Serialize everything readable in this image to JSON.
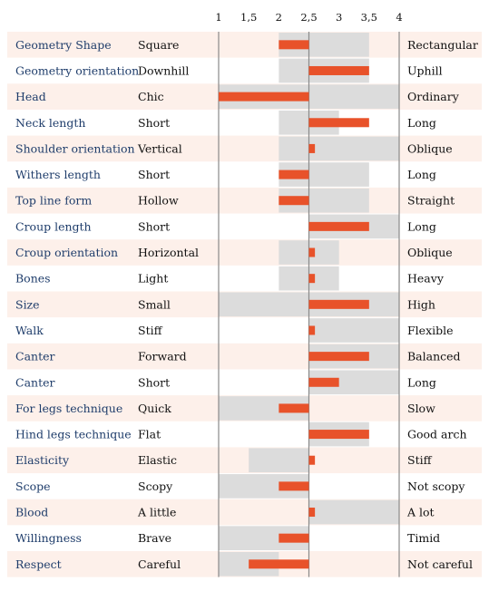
{
  "chart_data": {
    "type": "bar",
    "title": "",
    "xlabel": "",
    "ylabel": "",
    "xlim": [
      1,
      4
    ],
    "reference_line": 2.5,
    "tick_labels": [
      "1",
      "1,5",
      "2",
      "2,5",
      "3",
      "3,5",
      "4"
    ],
    "tick_values": [
      1,
      1.5,
      2,
      2.5,
      3,
      3.5,
      4
    ],
    "rows": [
      {
        "trait": "Geometry Shape",
        "low": "Square",
        "high": "Rectangular",
        "range": [
          2.0,
          3.5
        ],
        "value": 2.0
      },
      {
        "trait": "Geometry orientation",
        "low": "Downhill",
        "high": "Uphill",
        "range": [
          2.0,
          3.5
        ],
        "value": 3.5
      },
      {
        "trait": "Head",
        "low": "Chic",
        "high": "Ordinary",
        "range": [
          1.0,
          4.0
        ],
        "value": 1.0
      },
      {
        "trait": "Neck length",
        "low": "Short",
        "high": "Long",
        "range": [
          2.0,
          3.0
        ],
        "value": 3.5
      },
      {
        "trait": "Shoulder orientation",
        "low": "Vertical",
        "high": "Oblique",
        "range": [
          2.0,
          4.0
        ],
        "value": 2.6
      },
      {
        "trait": "Withers length",
        "low": "Short",
        "high": "Long",
        "range": [
          2.0,
          3.5
        ],
        "value": 2.0
      },
      {
        "trait": "Top line form",
        "low": "Hollow",
        "high": "Straight",
        "range": [
          2.0,
          3.5
        ],
        "value": 2.0
      },
      {
        "trait": "Croup length",
        "low": "Short",
        "high": "Long",
        "range": [
          2.5,
          4.0
        ],
        "value": 3.5
      },
      {
        "trait": "Croup orientation",
        "low": "Horizontal",
        "high": "Oblique",
        "range": [
          2.0,
          3.0
        ],
        "value": 2.6
      },
      {
        "trait": "Bones",
        "low": "Light",
        "high": "Heavy",
        "range": [
          2.0,
          3.0
        ],
        "value": 2.6
      },
      {
        "trait": "Size",
        "low": "Small",
        "high": "High",
        "range": [
          1.0,
          4.0
        ],
        "value": 3.5
      },
      {
        "trait": "Walk",
        "low": "Stiff",
        "high": "Flexible",
        "range": [
          2.5,
          4.0
        ],
        "value": 2.6
      },
      {
        "trait": "Canter",
        "low": "Forward",
        "high": "Balanced",
        "range": [
          2.5,
          4.0
        ],
        "value": 3.5
      },
      {
        "trait": "Canter",
        "low": "Short",
        "high": "Long",
        "range": [
          2.5,
          4.0
        ],
        "value": 3.0
      },
      {
        "trait": "For legs technique",
        "low": "Quick",
        "high": "Slow",
        "range": [
          1.0,
          2.5
        ],
        "value": 2.0
      },
      {
        "trait": "Hind legs technique",
        "low": "Flat",
        "high": "Good arch",
        "range": [
          2.5,
          3.5
        ],
        "value": 3.5
      },
      {
        "trait": "Elasticity",
        "low": "Elastic",
        "high": "Stiff",
        "range": [
          1.5,
          2.5
        ],
        "value": 2.6
      },
      {
        "trait": "Scope",
        "low": "Scopy",
        "high": "Not scopy",
        "range": [
          1.0,
          2.5
        ],
        "value": 2.0
      },
      {
        "trait": "Blood",
        "low": "A little",
        "high": "A lot",
        "range": [
          2.5,
          4.0
        ],
        "value": 2.6
      },
      {
        "trait": "Willingness",
        "low": "Brave",
        "high": "Timid",
        "range": [
          1.0,
          2.5
        ],
        "value": 2.0
      },
      {
        "trait": "Respect",
        "low": "Careful",
        "high": "Not careful",
        "range": [
          1.0,
          2.0
        ],
        "value": 1.5
      }
    ],
    "colors": {
      "row_band": "#fdf0ea",
      "range_fill": "#dcdcdc",
      "value_bar": "#e8522a",
      "axis_line": "#8a8a8a",
      "trait_text": "#1f3d6b"
    }
  }
}
